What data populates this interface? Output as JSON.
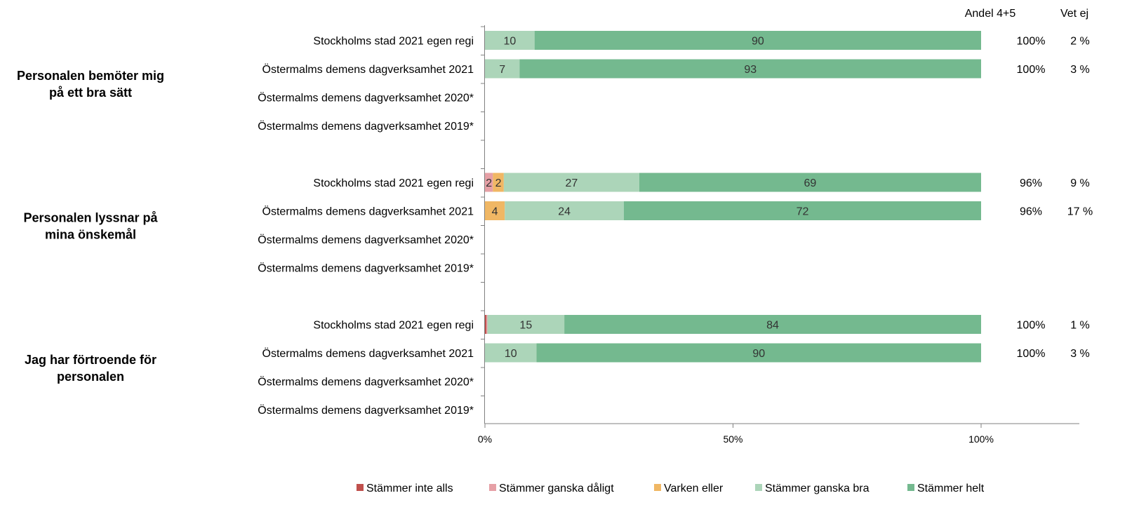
{
  "chart_data": {
    "type": "bar",
    "stacked": true,
    "orientation": "horizontal",
    "xlim": [
      0,
      120
    ],
    "x_ticks": [
      0,
      50,
      100
    ],
    "x_tick_labels": [
      "0%",
      "50%",
      "100%"
    ],
    "grid": false,
    "legend_position": "bottom",
    "column_headers": {
      "andel": "Andel 4+5",
      "vetej": "Vet ej"
    },
    "series": [
      {
        "name": "Stämmer inte alls",
        "color": "#c0504d"
      },
      {
        "name": "Stämmer ganska dåligt",
        "color": "#e6a0a6"
      },
      {
        "name": "Varken eller",
        "color": "#f0b764"
      },
      {
        "name": "Stämmer ganska bra",
        "color": "#acd5b9"
      },
      {
        "name": "Stämmer helt",
        "color": "#74b98f"
      }
    ],
    "groups": [
      {
        "title_lines": [
          "Personalen bemöter mig",
          "på ett bra sätt"
        ],
        "rows": [
          {
            "label": "Stockholms stad 2021 egen regi",
            "values": [
              0,
              0,
              0,
              10,
              90
            ],
            "labels": [
              "",
              "",
              "",
              "10",
              "90"
            ],
            "andel": "100%",
            "vetej": "2 %"
          },
          {
            "label": "Östermalms demens dagverksamhet 2021",
            "values": [
              0,
              0,
              0,
              7,
              93
            ],
            "labels": [
              "",
              "",
              "",
              "7",
              "93"
            ],
            "andel": "100%",
            "vetej": "3 %"
          },
          {
            "label": "Östermalms demens dagverksamhet 2020*",
            "values": null,
            "andel": "",
            "vetej": ""
          },
          {
            "label": "Östermalms demens dagverksamhet 2019*",
            "values": null,
            "andel": "",
            "vetej": ""
          }
        ]
      },
      {
        "title_lines": [
          "Personalen lyssnar på",
          "mina önskemål"
        ],
        "rows": [
          {
            "label": "Stockholms stad 2021 egen regi",
            "values": [
              0,
              1.6,
              2.2,
              27.3,
              68.9
            ],
            "labels": [
              "",
              "2",
              "2",
              "27",
              "69"
            ],
            "andel": "96%",
            "vetej": "9 %"
          },
          {
            "label": "Östermalms demens dagverksamhet 2021",
            "values": [
              0,
              0,
              4,
              24,
              72
            ],
            "labels": [
              "",
              "",
              "4",
              "24",
              "72"
            ],
            "andel": "96%",
            "vetej": "17 %"
          },
          {
            "label": "Östermalms demens dagverksamhet 2020*",
            "values": null,
            "andel": "",
            "vetej": ""
          },
          {
            "label": "Östermalms demens dagverksamhet 2019*",
            "values": null,
            "andel": "",
            "vetej": ""
          }
        ]
      },
      {
        "title_lines": [
          "Jag har förtroende för",
          "personalen"
        ],
        "rows": [
          {
            "label": "Stockholms stad 2021 egen regi",
            "values": [
              0.3,
              0.2,
              0,
              15.5,
              84
            ],
            "labels": [
              "",
              "",
              "",
              "15",
              "84"
            ],
            "andel": "100%",
            "vetej": "1 %"
          },
          {
            "label": "Östermalms demens dagverksamhet 2021",
            "values": [
              0,
              0,
              0,
              10.4,
              89.6
            ],
            "labels": [
              "",
              "",
              "",
              "10",
              "90"
            ],
            "andel": "100%",
            "vetej": "3 %"
          },
          {
            "label": "Östermalms demens dagverksamhet 2020*",
            "values": null,
            "andel": "",
            "vetej": ""
          },
          {
            "label": "Östermalms demens dagverksamhet 2019*",
            "values": null,
            "andel": "",
            "vetej": ""
          }
        ]
      }
    ]
  }
}
